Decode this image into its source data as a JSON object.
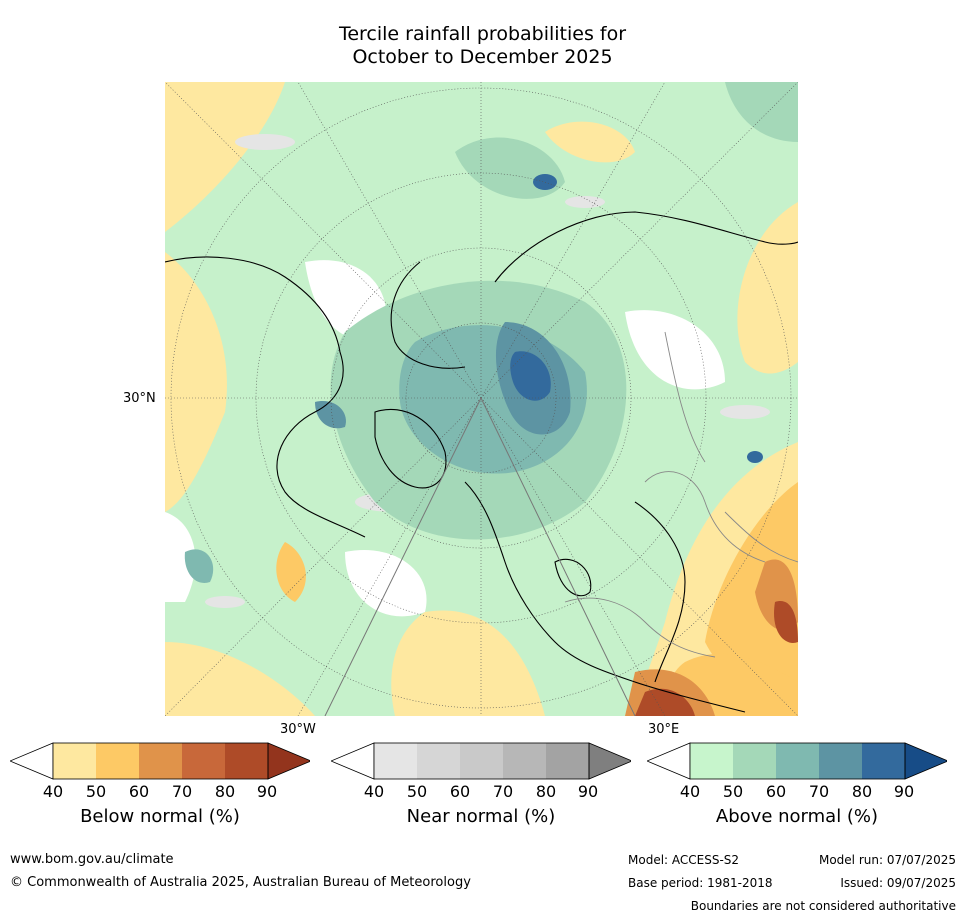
{
  "title_line1": "Tercile rainfall probabilities for",
  "title_line2": "October to December 2025",
  "map": {
    "label_30N": "30°N",
    "label_30W": "30°W",
    "label_30E": "30°E"
  },
  "colorbars": {
    "below": {
      "label": "Below normal (%)",
      "ticks": [
        "40",
        "50",
        "60",
        "70",
        "80",
        "90"
      ],
      "colors": [
        "#ffffff",
        "#fee8a0",
        "#fdc965",
        "#e0934a",
        "#c8683a",
        "#ae4b28",
        "#93341d"
      ]
    },
    "near": {
      "label": "Near normal (%)",
      "ticks": [
        "40",
        "50",
        "60",
        "70",
        "80",
        "90"
      ],
      "colors": [
        "#ffffff",
        "#e5e5e5",
        "#d6d6d6",
        "#c9c9c9",
        "#b7b7b7",
        "#a3a3a3",
        "#7f7f7f"
      ]
    },
    "above": {
      "label": "Above normal (%)",
      "ticks": [
        "40",
        "50",
        "60",
        "70",
        "80",
        "90"
      ],
      "colors": [
        "#ffffff",
        "#c7f5cc",
        "#a4d8b8",
        "#7fb9b0",
        "#5d94a3",
        "#336a9d",
        "#174c87"
      ]
    }
  },
  "footer": {
    "website": "www.bom.gov.au/climate",
    "copyright": "© Commonwealth of Australia 2025, Australian Bureau of Meteorology",
    "model": "Model: ACCESS-S2",
    "model_run": "Model run: 07/07/2025",
    "base_period": "Base period: 1981-2018",
    "issued": "Issued: 09/07/2025",
    "disclaimer": "Boundaries are not considered authoritative"
  }
}
